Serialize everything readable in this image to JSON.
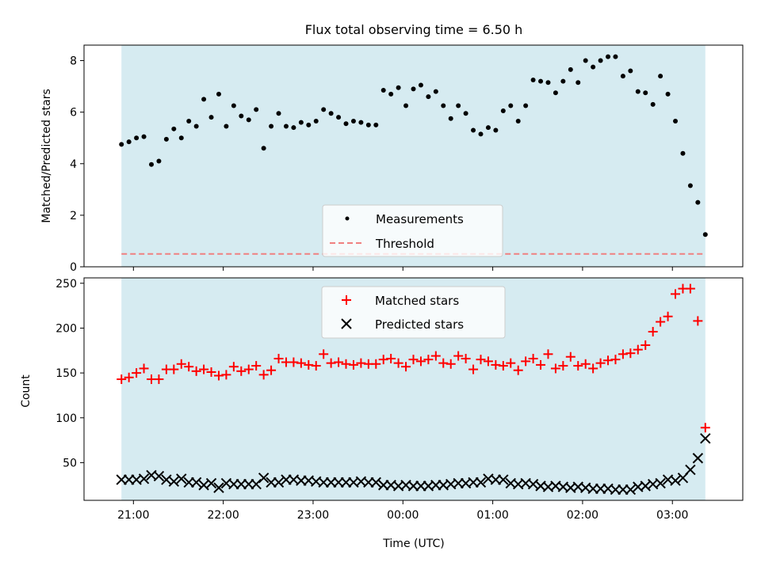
{
  "chart_data": [
    {
      "type": "scatter",
      "title": "Flux total observing time = 6.50 h",
      "xlabel": "",
      "ylabel": "Matched/Predicted stars",
      "ylim": [
        0,
        8.6
      ],
      "yticks": [
        0,
        2,
        4,
        6,
        8
      ],
      "grid": false,
      "legend_position": "bottom-center",
      "shaded_span": [
        "20:52",
        "03:22"
      ],
      "colors": {
        "shade": "#d4eaf0",
        "measurements": "#000000",
        "threshold": "#f08080"
      },
      "series": [
        {
          "name": "Measurements",
          "marker": "dot",
          "x": [
            "20:52",
            "20:57",
            "21:02",
            "21:07",
            "21:12",
            "21:17",
            "21:22",
            "21:27",
            "21:32",
            "21:37",
            "21:42",
            "21:47",
            "21:52",
            "21:57",
            "22:02",
            "22:07",
            "22:12",
            "22:17",
            "22:22",
            "22:27",
            "22:32",
            "22:37",
            "22:42",
            "22:47",
            "22:52",
            "22:57",
            "23:02",
            "23:07",
            "23:12",
            "23:17",
            "23:22",
            "23:27",
            "23:32",
            "23:37",
            "23:42",
            "23:47",
            "23:52",
            "23:57",
            "00:02",
            "00:07",
            "00:12",
            "00:17",
            "00:22",
            "00:27",
            "00:32",
            "00:37",
            "00:42",
            "00:47",
            "00:52",
            "00:57",
            "01:02",
            "01:07",
            "01:12",
            "01:17",
            "01:22",
            "01:27",
            "01:32",
            "01:37",
            "01:42",
            "01:47",
            "01:52",
            "01:57",
            "02:02",
            "02:07",
            "02:12",
            "02:17",
            "02:22",
            "02:27",
            "02:32",
            "02:37",
            "02:42",
            "02:47",
            "02:52",
            "02:57",
            "03:02",
            "03:07",
            "03:12",
            "03:17",
            "03:22"
          ],
          "values": [
            4.75,
            4.85,
            5.0,
            5.05,
            3.97,
            4.1,
            4.95,
            5.35,
            5.0,
            5.65,
            5.45,
            6.5,
            5.8,
            6.7,
            5.45,
            6.25,
            5.85,
            5.7,
            6.1,
            4.6,
            5.45,
            5.95,
            5.45,
            5.4,
            5.6,
            5.5,
            5.65,
            6.1,
            5.95,
            5.8,
            5.55,
            5.65,
            5.6,
            5.5,
            5.5,
            6.85,
            6.7,
            6.95,
            6.25,
            6.9,
            7.05,
            6.6,
            6.8,
            6.25,
            5.75,
            6.25,
            5.95,
            5.3,
            5.15,
            5.4,
            5.3,
            6.05,
            6.25,
            5.65,
            6.25,
            7.25,
            7.2,
            7.15,
            6.75,
            7.2,
            7.65,
            7.15,
            8.0,
            7.75,
            8.0,
            8.15,
            8.15,
            7.4,
            7.6,
            6.8,
            6.75,
            6.3,
            7.4,
            6.7,
            5.65,
            4.4,
            3.15,
            2.5,
            1.25
          ]
        },
        {
          "name": "Threshold",
          "style": "dashed",
          "constant": 0.5
        }
      ]
    },
    {
      "type": "scatter",
      "title": "",
      "xlabel": "Time (UTC)",
      "ylabel": "Count",
      "ylim": [
        8,
        256
      ],
      "yticks": [
        50,
        100,
        150,
        200,
        250
      ],
      "xtick_labels": [
        "21:00",
        "22:00",
        "23:00",
        "00:00",
        "01:00",
        "02:00",
        "03:00"
      ],
      "xlim": [
        "20:27",
        "03:47"
      ],
      "grid": false,
      "legend_position": "top-center",
      "colors": {
        "matched": "#ff0000",
        "predicted": "#000000"
      },
      "x": [
        "20:52",
        "20:57",
        "21:02",
        "21:07",
        "21:12",
        "21:17",
        "21:22",
        "21:27",
        "21:32",
        "21:37",
        "21:42",
        "21:47",
        "21:52",
        "21:57",
        "22:02",
        "22:07",
        "22:12",
        "22:17",
        "22:22",
        "22:27",
        "22:32",
        "22:37",
        "22:42",
        "22:47",
        "22:52",
        "22:57",
        "23:02",
        "23:07",
        "23:12",
        "23:17",
        "23:22",
        "23:27",
        "23:32",
        "23:37",
        "23:42",
        "23:47",
        "23:52",
        "23:57",
        "00:02",
        "00:07",
        "00:12",
        "00:17",
        "00:22",
        "00:27",
        "00:32",
        "00:37",
        "00:42",
        "00:47",
        "00:52",
        "00:57",
        "01:02",
        "01:07",
        "01:12",
        "01:17",
        "01:22",
        "01:27",
        "01:32",
        "01:37",
        "01:42",
        "01:47",
        "01:52",
        "01:57",
        "02:02",
        "02:07",
        "02:12",
        "02:17",
        "02:22",
        "02:27",
        "02:32",
        "02:37",
        "02:42",
        "02:47",
        "02:52",
        "02:57",
        "03:02",
        "03:07",
        "03:12",
        "03:17",
        "03:22"
      ],
      "series": [
        {
          "name": "Matched stars",
          "marker": "plus",
          "values": [
            143,
            145,
            150,
            155,
            143,
            143,
            154,
            154,
            160,
            157,
            152,
            154,
            151,
            147,
            148,
            157,
            152,
            154,
            158,
            148,
            153,
            166,
            162,
            162,
            161,
            159,
            158,
            171,
            161,
            162,
            160,
            159,
            161,
            160,
            160,
            165,
            166,
            161,
            157,
            165,
            163,
            165,
            169,
            161,
            160,
            169,
            166,
            154,
            165,
            163,
            159,
            158,
            161,
            153,
            163,
            166,
            159,
            171,
            155,
            158,
            168,
            158,
            160,
            155,
            161,
            164,
            165,
            171,
            172,
            176,
            181,
            196,
            207,
            213,
            238,
            244,
            244,
            208,
            89
          ]
        },
        {
          "name": "Predicted stars",
          "marker": "x",
          "values": [
            31,
            31,
            31,
            32,
            36,
            35,
            31,
            29,
            32,
            28,
            28,
            25,
            27,
            22,
            27,
            26,
            26,
            26,
            26,
            33,
            28,
            28,
            31,
            31,
            30,
            30,
            29,
            28,
            28,
            28,
            28,
            28,
            29,
            28,
            28,
            25,
            25,
            24,
            25,
            24,
            24,
            24,
            25,
            25,
            26,
            27,
            27,
            28,
            28,
            32,
            31,
            31,
            27,
            26,
            27,
            26,
            24,
            23,
            24,
            23,
            22,
            23,
            22,
            21,
            21,
            21,
            20,
            20,
            20,
            23,
            24,
            26,
            27,
            31,
            30,
            33,
            42,
            55,
            77
          ]
        }
      ]
    }
  ]
}
